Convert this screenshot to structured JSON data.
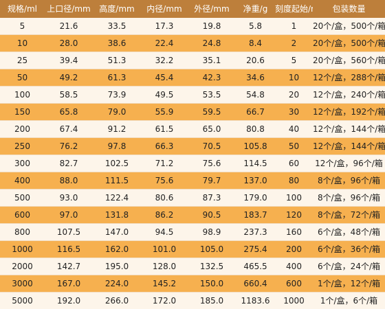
{
  "table": {
    "headers": [
      "规格/ml",
      "上口径/mm",
      "高度/mm",
      "内径/mm",
      "外径/mm",
      "净重/g",
      "刻度起始/ml",
      "包装数量"
    ],
    "rows": [
      [
        "5",
        "21.6",
        "33.5",
        "17.3",
        "19.8",
        "5.8",
        "1",
        "20个/盒，500个/箱"
      ],
      [
        "10",
        "28.0",
        "38.6",
        "22.4",
        "24.8",
        "8.4",
        "2",
        "20个/盒，500个/箱"
      ],
      [
        "25",
        "39.4",
        "51.3",
        "32.2",
        "35.1",
        "20.6",
        "5",
        "20个/盒，560个/箱"
      ],
      [
        "50",
        "49.2",
        "61.3",
        "45.4",
        "42.3",
        "34.6",
        "10",
        "12个/盒，288个/箱"
      ],
      [
        "100",
        "58.5",
        "73.9",
        "49.5",
        "53.5",
        "54.8",
        "20",
        "12个/盒，240个/箱"
      ],
      [
        "150",
        "65.8",
        "79.0",
        "55.9",
        "59.5",
        "66.7",
        "30",
        "12个/盒，192个/箱"
      ],
      [
        "200",
        "67.4",
        "91.2",
        "61.5",
        "65.0",
        "80.8",
        "40",
        "12个/盒，144个/箱"
      ],
      [
        "250",
        "76.2",
        "97.8",
        "66.3",
        "70.5",
        "105.8",
        "50",
        "12个/盒，144个/箱"
      ],
      [
        "300",
        "82.7",
        "102.5",
        "71.2",
        "75.6",
        "114.5",
        "60",
        "12个/盒，96个/箱"
      ],
      [
        "400",
        "88.0",
        "111.5",
        "75.6",
        "79.7",
        "137.0",
        "80",
        "8个/盒，96个/箱"
      ],
      [
        "500",
        "93.0",
        "122.4",
        "80.6",
        "87.3",
        "179.0",
        "100",
        "8个/盒，96个/箱"
      ],
      [
        "600",
        "97.0",
        "131.8",
        "86.2",
        "90.5",
        "183.7",
        "120",
        "8个/盒，72个/箱"
      ],
      [
        "800",
        "107.5",
        "147.0",
        "94.5",
        "98.9",
        "237.3",
        "160",
        "6个/盒，48个/箱"
      ],
      [
        "1000",
        "116.5",
        "162.0",
        "101.0",
        "105.0",
        "275.4",
        "200",
        "6个/盒，36个/箱"
      ],
      [
        "2000",
        "142.7",
        "195.0",
        "128.0",
        "132.5",
        "465.5",
        "400",
        "6个/盒，24个/箱"
      ],
      [
        "3000",
        "167.0",
        "224.0",
        "145.2",
        "150.0",
        "660.4",
        "600",
        "1个/盒，12个/箱"
      ],
      [
        "5000",
        "192.0",
        "266.0",
        "172.0",
        "185.0",
        "1183.6",
        "1000",
        "1个/盒，6个/箱"
      ]
    ]
  }
}
